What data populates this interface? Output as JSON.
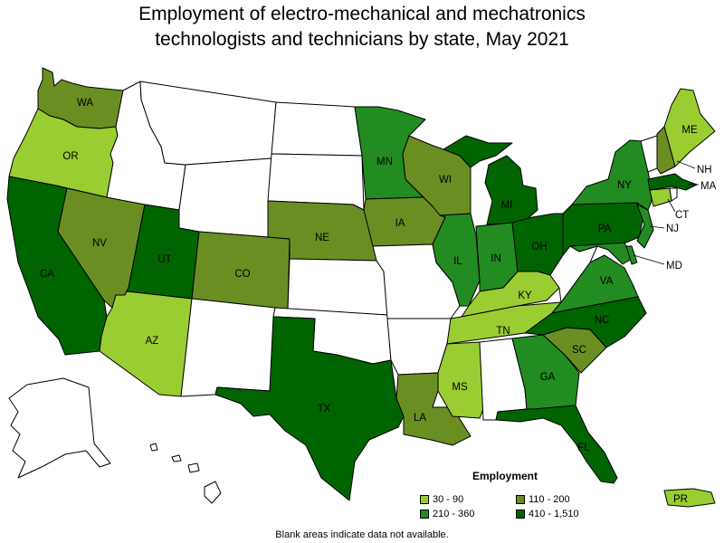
{
  "title": {
    "line1": "Employment of electro-mechanical and mechatronics",
    "line2": "technologists and technicians by state, May 2021"
  },
  "legend": {
    "title": "Employment",
    "items": [
      {
        "label": "30 - 90",
        "color": "#9acd32"
      },
      {
        "label": "110 - 200",
        "color": "#6b8e23"
      },
      {
        "label": "210 - 360",
        "color": "#228b22"
      },
      {
        "label": "410 - 1,510",
        "color": "#006400"
      }
    ]
  },
  "note": "Blank areas indicate data not available.",
  "colors": {
    "no_data": "#ffffff"
  },
  "states": {
    "WA": {
      "label": "WA",
      "class": 1
    },
    "OR": {
      "label": "OR",
      "class": 0
    },
    "CA": {
      "label": "CA",
      "class": 3
    },
    "NV": {
      "label": "NV",
      "class": 1
    },
    "ID": {
      "label": "",
      "class": null
    },
    "MT": {
      "label": "",
      "class": null
    },
    "WY": {
      "label": "",
      "class": null
    },
    "UT": {
      "label": "UT",
      "class": 3
    },
    "AZ": {
      "label": "AZ",
      "class": 0
    },
    "CO": {
      "label": "CO",
      "class": 1
    },
    "NM": {
      "label": "",
      "class": null
    },
    "ND": {
      "label": "",
      "class": null
    },
    "SD": {
      "label": "",
      "class": null
    },
    "NE": {
      "label": "NE",
      "class": 1
    },
    "KS": {
      "label": "",
      "class": null
    },
    "OK": {
      "label": "",
      "class": null
    },
    "TX": {
      "label": "TX",
      "class": 3
    },
    "MN": {
      "label": "MN",
      "class": 2
    },
    "IA": {
      "label": "IA",
      "class": 1
    },
    "MO": {
      "label": "",
      "class": null
    },
    "AR": {
      "label": "",
      "class": null
    },
    "LA": {
      "label": "LA",
      "class": 1
    },
    "WI": {
      "label": "WI",
      "class": 1
    },
    "IL": {
      "label": "IL",
      "class": 2
    },
    "MI": {
      "label": "MI",
      "class": 3
    },
    "IN": {
      "label": "IN",
      "class": 2
    },
    "OH": {
      "label": "OH",
      "class": 3
    },
    "KY": {
      "label": "KY",
      "class": 0
    },
    "TN": {
      "label": "TN",
      "class": 0
    },
    "MS": {
      "label": "MS",
      "class": 0
    },
    "AL": {
      "label": "",
      "class": null
    },
    "GA": {
      "label": "GA",
      "class": 2
    },
    "FL": {
      "label": "FL",
      "class": 3
    },
    "SC": {
      "label": "SC",
      "class": 1
    },
    "NC": {
      "label": "NC",
      "class": 3
    },
    "VA": {
      "label": "VA",
      "class": 2
    },
    "WV": {
      "label": "",
      "class": null
    },
    "PA": {
      "label": "PA",
      "class": 3
    },
    "NY": {
      "label": "NY",
      "class": 2
    },
    "VT": {
      "label": "",
      "class": null
    },
    "NH": {
      "label": "NH",
      "class": 1
    },
    "ME": {
      "label": "ME",
      "class": 0
    },
    "MA": {
      "label": "MA",
      "class": 3
    },
    "CT": {
      "label": "CT",
      "class": 0
    },
    "RI": {
      "label": "",
      "class": null
    },
    "NJ": {
      "label": "NJ",
      "class": 2
    },
    "DE": {
      "label": "",
      "class": 2
    },
    "MD": {
      "label": "MD",
      "class": 2
    },
    "AK": {
      "label": "",
      "class": null
    },
    "HI": {
      "label": "",
      "class": null
    },
    "PR": {
      "label": "PR",
      "class": 0
    }
  }
}
